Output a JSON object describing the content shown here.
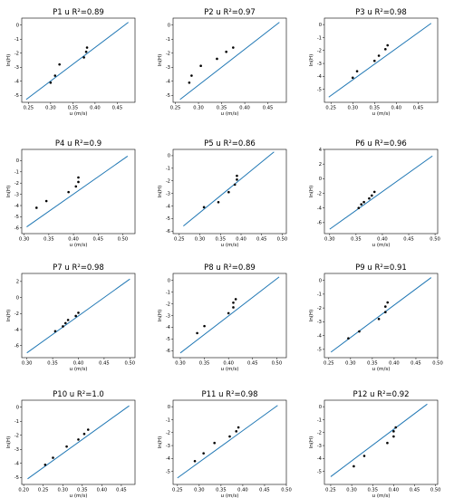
{
  "chart_data": [
    {
      "type": "scatter",
      "title": "P1 u  R²=0.89",
      "xlabel": "u (m/s)",
      "ylabel": "ln(H)",
      "xlim": [
        0.235,
        0.49
      ],
      "ylim": [
        -5.5,
        0.5
      ],
      "xticks": [
        "0.25",
        "0.30",
        "0.35",
        "0.40",
        "0.45"
      ],
      "yticks": [
        "-5",
        "-4",
        "-3",
        "-2",
        "-1",
        "0"
      ],
      "points": {
        "x": [
          0.3,
          0.31,
          0.32,
          0.375,
          0.38,
          0.382
        ],
        "y": [
          -4.1,
          -3.6,
          -2.8,
          -2.3,
          -1.9,
          -1.6
        ]
      },
      "fit": {
        "x": [
          0.245,
          0.475
        ],
        "y": [
          -5.3,
          0.2
        ]
      }
    },
    {
      "type": "scatter",
      "title": "P2 u  R²=0.97",
      "xlabel": "u (m/s)",
      "ylabel": "ln(H)",
      "xlim": [
        0.245,
        0.49
      ],
      "ylim": [
        -5.5,
        0.5
      ],
      "xticks": [
        "0.25",
        "0.30",
        "0.35",
        "0.40",
        "0.45"
      ],
      "yticks": [
        "-5",
        "-4",
        "-3",
        "-2",
        "-1",
        "0"
      ],
      "points": {
        "x": [
          0.28,
          0.285,
          0.305,
          0.34,
          0.36,
          0.375
        ],
        "y": [
          -4.1,
          -3.6,
          -2.9,
          -2.4,
          -1.9,
          -1.6
        ]
      },
      "fit": {
        "x": [
          0.26,
          0.475
        ],
        "y": [
          -5.3,
          0.2
        ]
      }
    },
    {
      "type": "scatter",
      "title": "P3 u  R²=0.98",
      "xlabel": "u (m/s)",
      "ylabel": "ln(H)",
      "xlim": [
        0.235,
        0.495
      ],
      "ylim": [
        -6,
        0.5
      ],
      "xticks": [
        "0.25",
        "0.30",
        "0.35",
        "0.40",
        "0.45"
      ],
      "yticks": [
        "-5",
        "-4",
        "-3",
        "-2",
        "-1",
        "0"
      ],
      "points": {
        "x": [
          0.3,
          0.31,
          0.35,
          0.36,
          0.375,
          0.38
        ],
        "y": [
          -4.1,
          -3.6,
          -2.8,
          -2.4,
          -1.9,
          -1.6
        ]
      },
      "fit": {
        "x": [
          0.245,
          0.48
        ],
        "y": [
          -5.6,
          0.1
        ]
      }
    },
    {
      "type": "scatter",
      "title": "P4 u  R²=0.9",
      "xlabel": "u (m/s)",
      "ylabel": "ln(H)",
      "xlim": [
        0.295,
        0.525
      ],
      "ylim": [
        -6.5,
        1
      ],
      "xticks": [
        "0.30",
        "0.35",
        "0.40",
        "0.45",
        "0.50"
      ],
      "yticks": [
        "-6",
        "-5",
        "-4",
        "-3",
        "-2",
        "-1",
        "0"
      ],
      "points": {
        "x": [
          0.325,
          0.345,
          0.39,
          0.405,
          0.41,
          0.41
        ],
        "y": [
          -4.2,
          -3.6,
          -2.8,
          -2.3,
          -1.9,
          -1.5
        ]
      },
      "fit": {
        "x": [
          0.305,
          0.51
        ],
        "y": [
          -5.9,
          0.4
        ]
      }
    },
    {
      "type": "scatter",
      "title": "P5 u  R²=0.86",
      "xlabel": "u (m/s)",
      "ylabel": "ln(H)",
      "xlim": [
        0.235,
        0.51
      ],
      "ylim": [
        -6.2,
        0.5
      ],
      "xticks": [
        "0.25",
        "0.30",
        "0.35",
        "0.40",
        "0.45",
        "0.50"
      ],
      "yticks": [
        "-6",
        "-5",
        "-4",
        "-3",
        "-2",
        "-1",
        "0"
      ],
      "points": {
        "x": [
          0.31,
          0.345,
          0.37,
          0.385,
          0.39,
          0.39
        ],
        "y": [
          -4.1,
          -3.7,
          -2.9,
          -2.3,
          -1.9,
          -1.6
        ]
      },
      "fit": {
        "x": [
          0.26,
          0.48
        ],
        "y": [
          -5.6,
          0.3
        ]
      }
    },
    {
      "type": "scatter",
      "title": "P6 u  R²=0.96",
      "xlabel": "u (m/s)",
      "ylabel": "ln(H)",
      "xlim": [
        0.29,
        0.505
      ],
      "ylim": [
        -7.5,
        4
      ],
      "xticks": [
        "0.30",
        "0.35",
        "0.40",
        "0.45",
        "0.50"
      ],
      "yticks": [
        "-6",
        "-4",
        "-2",
        "0",
        "2",
        "4"
      ],
      "points": {
        "x": [
          0.355,
          0.36,
          0.365,
          0.375,
          0.38,
          0.385
        ],
        "y": [
          -4.0,
          -3.5,
          -3.2,
          -2.7,
          -2.3,
          -1.8
        ]
      },
      "fit": {
        "x": [
          0.3,
          0.495
        ],
        "y": [
          -6.9,
          3.1
        ]
      }
    },
    {
      "type": "scatter",
      "title": "P7 u  R²=0.98",
      "xlabel": "u (m/s)",
      "ylabel": "ln(H)",
      "xlim": [
        0.29,
        0.51
      ],
      "ylim": [
        -7.5,
        3
      ],
      "xticks": [
        "0.30",
        "0.35",
        "0.40",
        "0.45",
        "0.50"
      ],
      "yticks": [
        "-6",
        "-4",
        "-2",
        "0",
        "2"
      ],
      "points": {
        "x": [
          0.355,
          0.37,
          0.375,
          0.38,
          0.395,
          0.4
        ],
        "y": [
          -4.2,
          -3.6,
          -3.2,
          -2.8,
          -2.3,
          -1.9
        ]
      },
      "fit": {
        "x": [
          0.3,
          0.5
        ],
        "y": [
          -6.9,
          2.3
        ]
      }
    },
    {
      "type": "scatter",
      "title": "P8 u  R²=0.89",
      "xlabel": "u (m/s)",
      "ylabel": "ln(H)",
      "xlim": [
        0.285,
        0.52
      ],
      "ylim": [
        -6.6,
        0.6
      ],
      "xticks": [
        "0.30",
        "0.35",
        "0.40",
        "0.45",
        "0.50"
      ],
      "yticks": [
        "-6",
        "-5",
        "-4",
        "-3",
        "-2",
        "-1",
        "0"
      ],
      "points": {
        "x": [
          0.335,
          0.35,
          0.4,
          0.41,
          0.41,
          0.415
        ],
        "y": [
          -4.5,
          -3.9,
          -2.8,
          -2.3,
          -1.9,
          -1.6
        ]
      },
      "fit": {
        "x": [
          0.3,
          0.505
        ],
        "y": [
          -6.2,
          0.3
        ]
      }
    },
    {
      "type": "scatter",
      "title": "P9 u  R²=0.91",
      "xlabel": "u (m/s)",
      "ylabel": "ln(H)",
      "xlim": [
        0.24,
        0.5
      ],
      "ylim": [
        -5.6,
        0.5
      ],
      "xticks": [
        "0.25",
        "0.30",
        "0.35",
        "0.40",
        "0.45",
        "0.50"
      ],
      "yticks": [
        "-5",
        "-4",
        "-3",
        "-2",
        "-1",
        "0"
      ],
      "points": {
        "x": [
          0.295,
          0.32,
          0.365,
          0.38,
          0.38,
          0.385
        ],
        "y": [
          -4.2,
          -3.7,
          -2.8,
          -2.3,
          -1.9,
          -1.6
        ]
      },
      "fit": {
        "x": [
          0.255,
          0.485
        ],
        "y": [
          -5.2,
          0.2
        ]
      }
    },
    {
      "type": "scatter",
      "title": "P10 u  R²=1.0",
      "xlabel": "u (m/s)",
      "ylabel": "ln(H)",
      "xlim": [
        0.195,
        0.485
      ],
      "ylim": [
        -5.5,
        0.5
      ],
      "xticks": [
        "0.20",
        "0.25",
        "0.30",
        "0.35",
        "0.40",
        "0.45"
      ],
      "yticks": [
        "-5",
        "-4",
        "-3",
        "-2",
        "-1",
        "0"
      ],
      "points": {
        "x": [
          0.255,
          0.275,
          0.31,
          0.34,
          0.355,
          0.365
        ],
        "y": [
          -4.1,
          -3.6,
          -2.8,
          -2.3,
          -1.9,
          -1.6
        ]
      },
      "fit": {
        "x": [
          0.21,
          0.47
        ],
        "y": [
          -5.1,
          0.1
        ]
      }
    },
    {
      "type": "scatter",
      "title": "P11 u  R²=0.98",
      "xlabel": "u (m/s)",
      "ylabel": "ln(H)",
      "xlim": [
        0.24,
        0.5
      ],
      "ylim": [
        -6,
        0.5
      ],
      "xticks": [
        "0.25",
        "0.30",
        "0.35",
        "0.40",
        "0.45",
        "0.50"
      ],
      "yticks": [
        "-5",
        "-4",
        "-3",
        "-2",
        "-1",
        "0"
      ],
      "points": {
        "x": [
          0.29,
          0.31,
          0.335,
          0.37,
          0.385,
          0.39
        ],
        "y": [
          -4.2,
          -3.6,
          -2.8,
          -2.3,
          -1.9,
          -1.6
        ]
      },
      "fit": {
        "x": [
          0.25,
          0.48
        ],
        "y": [
          -5.5,
          0.1
        ]
      }
    },
    {
      "type": "scatter",
      "title": "P12 u  R²=0.92",
      "xlabel": "u (m/s)",
      "ylabel": "ln(H)",
      "xlim": [
        0.235,
        0.505
      ],
      "ylim": [
        -6,
        0.5
      ],
      "xticks": [
        "0.25",
        "0.30",
        "0.35",
        "0.40",
        "0.45",
        "0.50"
      ],
      "yticks": [
        "-5",
        "-4",
        "-3",
        "-2",
        "-1",
        "0"
      ],
      "points": {
        "x": [
          0.305,
          0.33,
          0.385,
          0.4,
          0.4,
          0.405
        ],
        "y": [
          -4.6,
          -3.8,
          -2.8,
          -2.3,
          -1.9,
          -1.6
        ]
      },
      "fit": {
        "x": [
          0.25,
          0.48
        ],
        "y": [
          -5.4,
          0.2
        ]
      }
    }
  ],
  "colors": {
    "fit_line": "#1f77b4",
    "points": "#000000",
    "axes": "#000000",
    "background": "#ffffff"
  }
}
